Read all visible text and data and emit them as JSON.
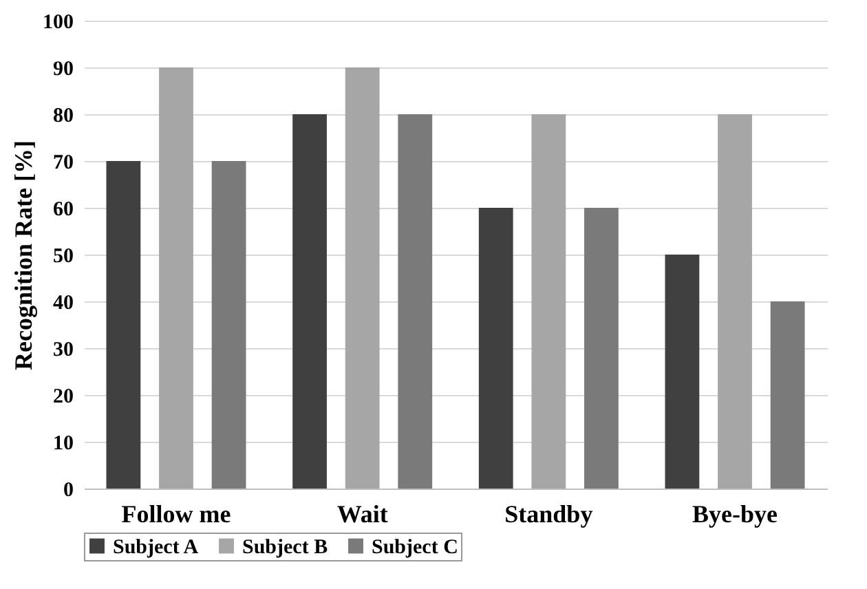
{
  "chart_data": {
    "type": "bar",
    "ylabel": "Recognition Rate [%]",
    "categories": [
      "Follow me",
      "Wait",
      "Standby",
      "Bye-bye"
    ],
    "series": [
      {
        "name": "Subject A",
        "color": "#404040",
        "values": [
          70,
          80,
          60,
          50
        ]
      },
      {
        "name": "Subject B",
        "color": "#a6a6a6",
        "values": [
          90,
          90,
          80,
          80
        ]
      },
      {
        "name": "Subject C",
        "color": "#7a7a7a",
        "values": [
          70,
          80,
          60,
          40
        ]
      }
    ],
    "ylim": [
      0,
      100
    ],
    "yticks": [
      0,
      10,
      20,
      30,
      40,
      50,
      60,
      70,
      80,
      90,
      100
    ],
    "grid": "y",
    "legend": "bottom"
  }
}
